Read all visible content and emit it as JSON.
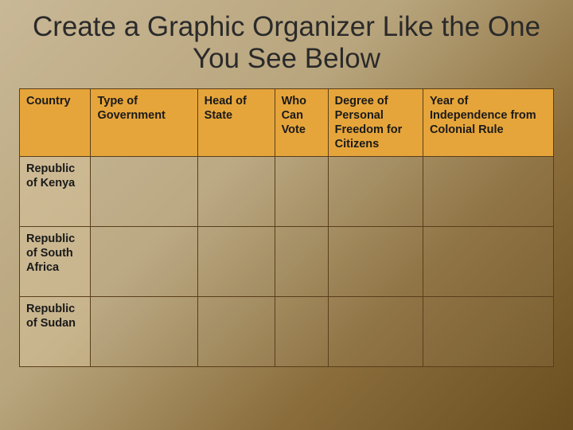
{
  "title": "Create a Graphic Organizer Like the One You See Below",
  "table": {
    "type": "table",
    "header_bg": "#e6a53a",
    "border_color": "#5a3e1a",
    "columns": [
      "Country",
      "Type of Government",
      "Head of State",
      "Who Can Vote",
      "Degree of Personal Freedom for Citizens",
      "Year of Independence from Colonial Rule"
    ],
    "rows": [
      {
        "label": "Republic of Kenya",
        "cells": [
          "",
          "",
          "",
          "",
          ""
        ]
      },
      {
        "label": "Republic of South Africa",
        "cells": [
          "",
          "",
          "",
          "",
          ""
        ]
      },
      {
        "label": "Republic of Sudan",
        "cells": [
          "",
          "",
          "",
          "",
          ""
        ]
      }
    ]
  },
  "fontsize_title": 35,
  "fontsize_cell": 14.5,
  "background_gradient": [
    "#c9b896",
    "#b8a57d",
    "#8a6d3b",
    "#6b4e1f"
  ]
}
